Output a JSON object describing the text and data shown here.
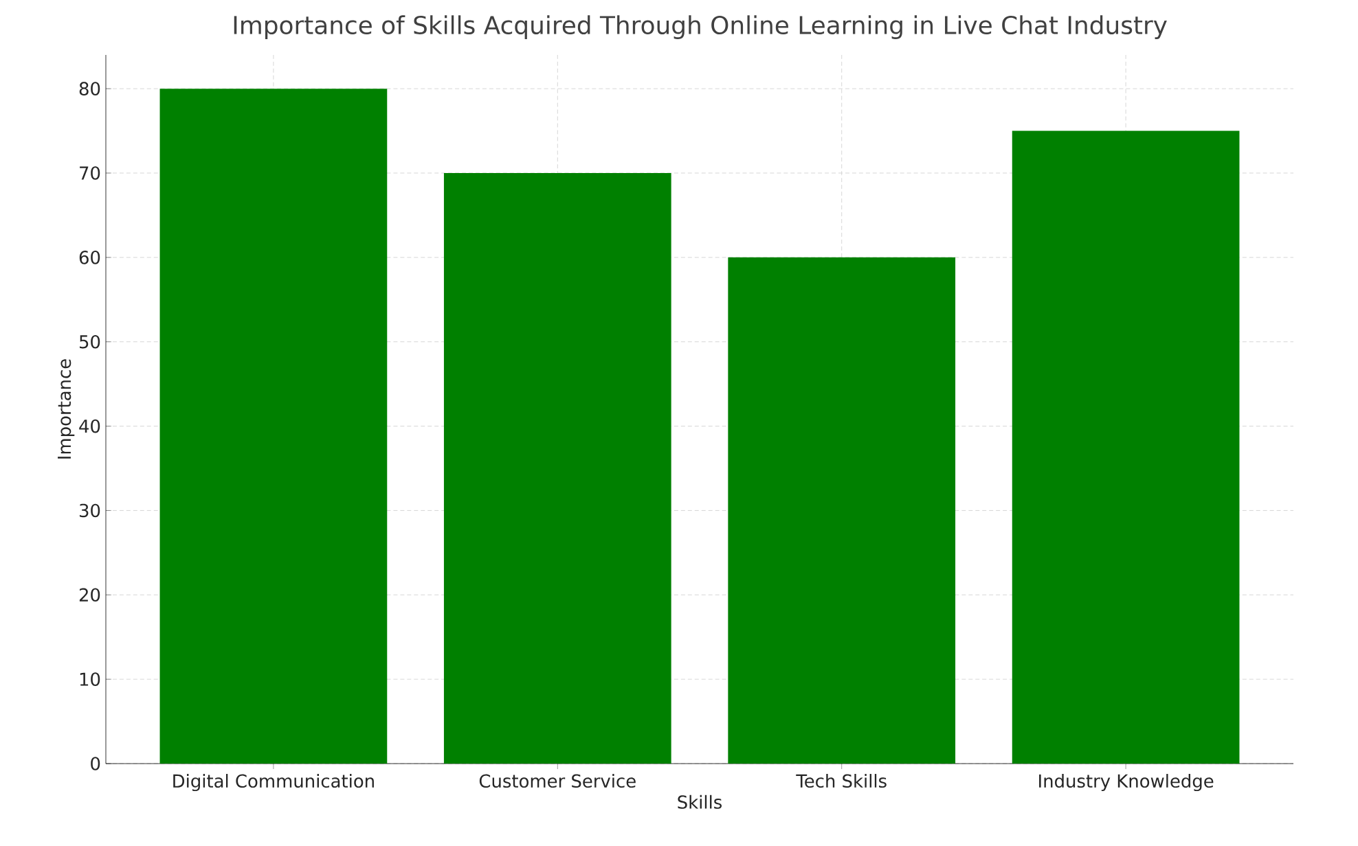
{
  "chart_data": {
    "type": "bar",
    "title": "Importance of Skills Acquired Through Online Learning in Live Chat Industry",
    "xlabel": "Skills",
    "ylabel": "Importance",
    "categories": [
      "Digital Communication",
      "Customer Service",
      "Tech Skills",
      "Industry Knowledge"
    ],
    "values": [
      80,
      70,
      60,
      75
    ],
    "color": "#008000",
    "ylim": [
      0,
      84
    ],
    "yticks": [
      0,
      10,
      20,
      30,
      40,
      50,
      60,
      70,
      80
    ],
    "grid": true
  }
}
